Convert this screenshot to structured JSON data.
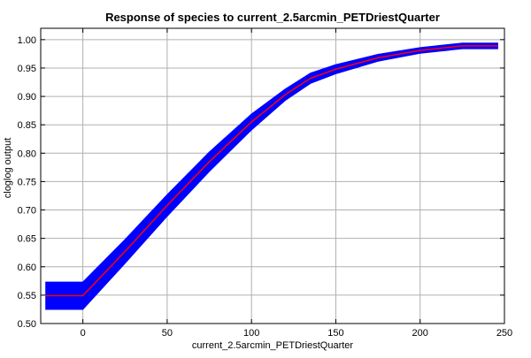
{
  "chart_data": {
    "type": "line",
    "title": "Response of species to current_2.5arcmin_PETDriestQuarter",
    "xlabel": "current_2.5arcmin_PETDriestQuarter",
    "ylabel": "cloglog output",
    "xlim": [
      -25,
      250
    ],
    "ylim": [
      0.5,
      1.02
    ],
    "xticks": [
      "0",
      "50",
      "100",
      "150",
      "200",
      "250"
    ],
    "xtick_values": [
      0,
      50,
      100,
      150,
      200,
      250
    ],
    "yticks": [
      "0.50",
      "0.55",
      "0.60",
      "0.65",
      "0.70",
      "0.75",
      "0.80",
      "0.85",
      "0.90",
      "0.95",
      "1.00"
    ],
    "ytick_values": [
      0.5,
      0.55,
      0.6,
      0.65,
      0.7,
      0.75,
      0.8,
      0.85,
      0.9,
      0.95,
      1.0
    ],
    "grid": true,
    "legend": "none",
    "series": [
      {
        "role": "mean",
        "color": "#ff0000",
        "x": [
          -22,
          0,
          25,
          50,
          75,
          100,
          120,
          135,
          150,
          175,
          200,
          225,
          246
        ],
        "values": [
          0.549,
          0.549,
          0.627,
          0.708,
          0.785,
          0.855,
          0.903,
          0.932,
          0.948,
          0.968,
          0.981,
          0.989,
          0.989
        ]
      },
      {
        "role": "band",
        "color": "#0000ff",
        "x": [
          -22,
          0,
          25,
          50,
          75,
          100,
          120,
          135,
          150,
          175,
          200,
          225,
          246
        ],
        "upper": [
          0.573,
          0.573,
          0.648,
          0.727,
          0.802,
          0.869,
          0.913,
          0.941,
          0.956,
          0.974,
          0.986,
          0.994,
          0.994
        ],
        "lower": [
          0.525,
          0.525,
          0.606,
          0.689,
          0.768,
          0.841,
          0.893,
          0.923,
          0.94,
          0.962,
          0.976,
          0.984,
          0.984
        ]
      }
    ]
  }
}
